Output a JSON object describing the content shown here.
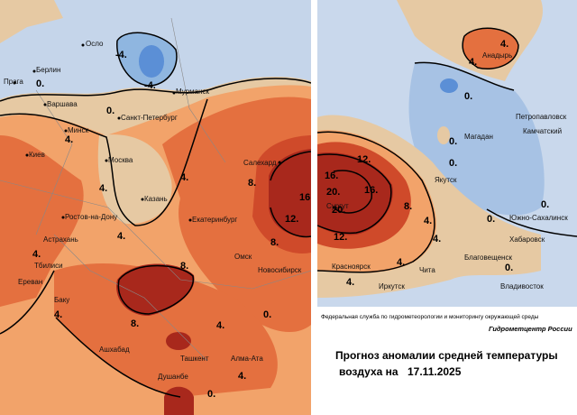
{
  "left": {
    "cities": [
      "Осло",
      "Берлин",
      "Прага",
      "Варшава",
      "Мурманск",
      "Санкт-Петербург",
      "Минск",
      "Киев",
      "Москва",
      "Казань",
      "Салехард",
      "Ростов-на-Дону",
      "Екатеринбург",
      "Астрахань",
      "Омск",
      "Новосибирск",
      "Тбилиси",
      "Ереван",
      "Баку",
      "Ашхабад",
      "Ташкент",
      "Алма-Ата",
      "Душанбе"
    ],
    "contour_labels": [
      "-4.",
      "-4.",
      "0.",
      "0.",
      "4.",
      "4.",
      "4.",
      "4.",
      "8.",
      "8.",
      "8.",
      "8.",
      "12.",
      "16.",
      "4.",
      "4.",
      "0.",
      "4.",
      "4.",
      "0."
    ]
  },
  "right": {
    "cities": [
      "Анадырь",
      "Петропавловск",
      "Камчатский",
      "Магадан",
      "Якутск",
      "Сургут",
      "Южно-Сахалинск",
      "Хабаровск",
      "Благовещенск",
      "Чита",
      "Красноярск",
      "Иркутск",
      "Владивосток"
    ],
    "contour_labels": [
      "4.",
      "4.",
      "0.",
      "0.",
      "0.",
      "16.",
      "16.",
      "20.",
      "20.",
      "12.",
      "12.",
      "8.",
      "4.",
      "4.",
      "4.",
      "0.",
      "4.",
      "0.",
      "0."
    ]
  },
  "footer": {
    "agency": "Федеральная служба по гидрометеорологии и мониторингу окружающей среды",
    "center": "Гидрометцентр России",
    "title": "Прогноз аномалии средней температуры",
    "subtitle": "воздуха на",
    "date": "17.11.2025"
  }
}
